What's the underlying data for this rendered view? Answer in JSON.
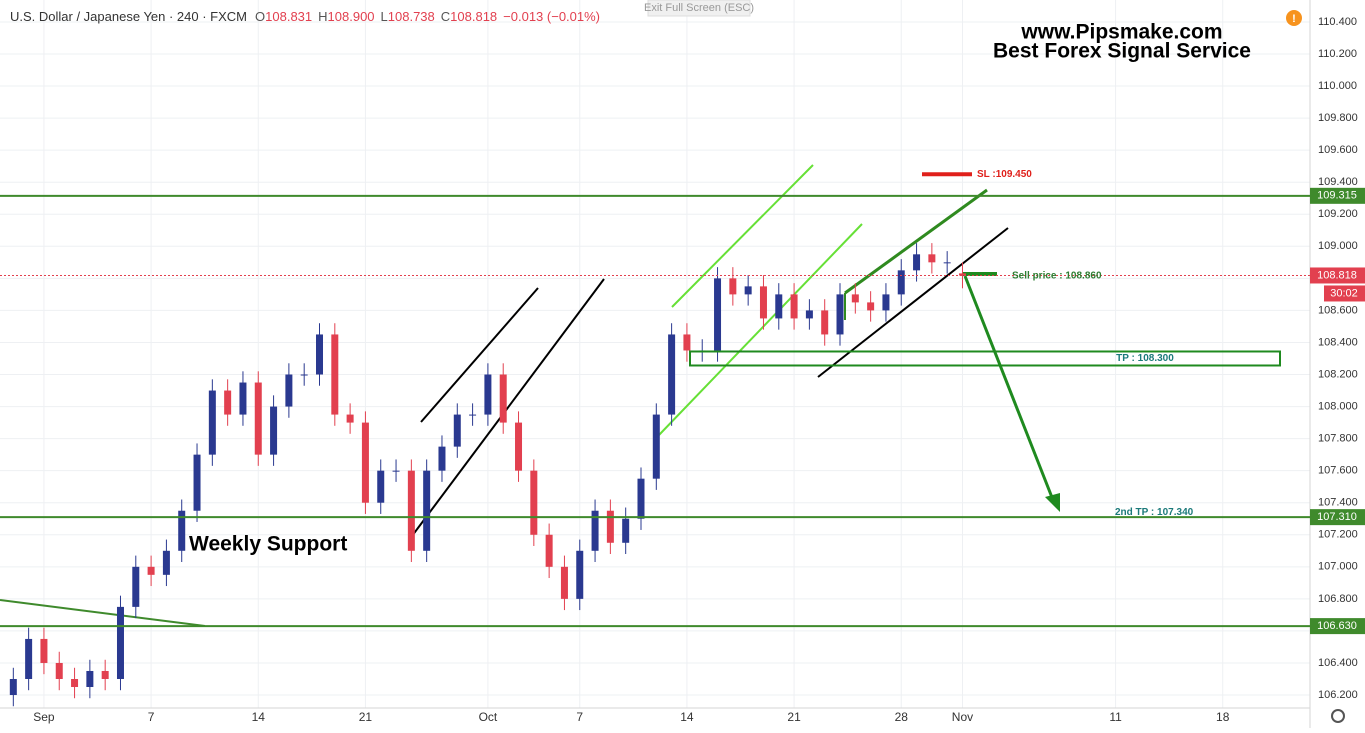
{
  "chart_data": {
    "type": "candlestick",
    "title": "U.S. Dollar / Japanese Yen · 240 · FXCM",
    "ohlc_legend": {
      "open_label": "O",
      "open": "108.831",
      "high_label": "H",
      "high": "108.900",
      "low_label": "L",
      "low": "108.738",
      "close_label": "C",
      "close": "108.818",
      "change": "−0.013 (−0.01%)"
    },
    "exit_button": "Exit Full Screen (ESC)",
    "watermark": [
      "www.Pipsmake.com",
      "Best Forex Signal Service"
    ],
    "support_label": "Weekly Support",
    "x": [
      -2,
      -1,
      0,
      1,
      2,
      3,
      4,
      5,
      6,
      7,
      8,
      9,
      10,
      11,
      12,
      13,
      14,
      15,
      16,
      17,
      18,
      19,
      20,
      21,
      22,
      23,
      24,
      25,
      26,
      27,
      28,
      29,
      30,
      31,
      32,
      33,
      34,
      35,
      36,
      37,
      38,
      39,
      40,
      41,
      42,
      43,
      44,
      45,
      46,
      47,
      48,
      49,
      50,
      51,
      52,
      53,
      54,
      55,
      56,
      57,
      58,
      59,
      60
    ],
    "open": [
      106.2,
      106.3,
      106.55,
      106.4,
      106.3,
      106.25,
      106.35,
      106.3,
      106.75,
      107.0,
      106.95,
      107.1,
      107.35,
      107.7,
      108.1,
      107.95,
      108.15,
      107.7,
      108.0,
      108.2,
      108.2,
      108.45,
      107.95,
      107.9,
      107.4,
      107.6,
      107.6,
      107.1,
      107.6,
      107.75,
      107.95,
      107.95,
      108.2,
      107.9,
      107.6,
      107.2,
      107.0,
      106.8,
      107.1,
      107.35,
      107.15,
      107.3,
      107.55,
      107.95,
      108.45,
      108.35,
      108.35,
      108.8,
      108.7,
      108.75,
      108.55,
      108.7,
      108.55,
      108.6,
      108.45,
      108.7,
      108.65,
      108.6,
      108.7,
      108.85,
      108.95,
      108.9,
      108.831
    ],
    "high": [
      106.37,
      106.62,
      106.62,
      106.47,
      106.37,
      106.42,
      106.42,
      106.82,
      107.07,
      107.07,
      107.17,
      107.42,
      107.77,
      108.17,
      108.17,
      108.22,
      108.22,
      108.07,
      108.27,
      108.27,
      108.52,
      108.52,
      108.02,
      107.97,
      107.67,
      107.67,
      107.67,
      107.67,
      107.82,
      108.02,
      108.02,
      108.27,
      108.27,
      107.97,
      107.67,
      107.27,
      107.07,
      107.17,
      107.42,
      107.42,
      107.37,
      107.62,
      108.02,
      108.52,
      108.52,
      108.42,
      108.87,
      108.87,
      108.82,
      108.82,
      108.77,
      108.77,
      108.67,
      108.67,
      108.77,
      108.77,
      108.72,
      108.77,
      108.92,
      109.02,
      109.02,
      108.97,
      108.9
    ],
    "low": [
      106.13,
      106.23,
      106.33,
      106.23,
      106.18,
      106.18,
      106.23,
      106.23,
      106.68,
      106.88,
      106.88,
      107.03,
      107.28,
      107.63,
      107.88,
      107.88,
      107.63,
      107.63,
      107.93,
      108.13,
      108.13,
      107.88,
      107.83,
      107.33,
      107.33,
      107.53,
      107.03,
      107.03,
      107.53,
      107.68,
      107.88,
      107.88,
      107.83,
      107.53,
      107.13,
      106.93,
      106.73,
      106.73,
      107.03,
      107.08,
      107.08,
      107.23,
      107.48,
      107.88,
      108.28,
      108.28,
      108.28,
      108.63,
      108.63,
      108.48,
      108.48,
      108.48,
      108.48,
      108.38,
      108.38,
      108.58,
      108.53,
      108.53,
      108.63,
      108.78,
      108.83,
      108.83,
      108.738
    ],
    "close": [
      106.3,
      106.55,
      106.4,
      106.3,
      106.25,
      106.35,
      106.3,
      106.75,
      107.0,
      106.95,
      107.1,
      107.35,
      107.7,
      108.1,
      107.95,
      108.15,
      107.7,
      108.0,
      108.2,
      108.2,
      108.45,
      107.95,
      107.9,
      107.4,
      107.6,
      107.6,
      107.1,
      107.6,
      107.75,
      107.95,
      107.95,
      108.2,
      107.9,
      107.6,
      107.2,
      107.0,
      106.8,
      107.1,
      107.35,
      107.15,
      107.3,
      107.55,
      107.95,
      108.45,
      108.35,
      108.35,
      108.8,
      108.7,
      108.75,
      108.55,
      108.7,
      108.55,
      108.6,
      108.45,
      108.7,
      108.65,
      108.6,
      108.7,
      108.85,
      108.95,
      108.9,
      108.9,
      108.818
    ],
    "up_color": "#2a3990",
    "down_color": "#e2404f",
    "xlim": [
      -2.87,
      82.7
    ],
    "xticks": [
      {
        "value": 0,
        "label": "Sep"
      },
      7,
      14,
      21,
      {
        "value": 29,
        "label": "Oct"
      },
      {
        "value": 35,
        "label": "7"
      },
      {
        "value": 42,
        "label": "14"
      },
      {
        "value": 49,
        "label": "21"
      },
      {
        "value": 56,
        "label": "28"
      },
      {
        "value": 60,
        "label": "Nov"
      },
      {
        "value": 70,
        "label": "11"
      },
      {
        "value": 77,
        "label": "18"
      }
    ],
    "ylim": [
      106.119,
      110.537
    ],
    "yticks": [
      {
        "value": 106.2,
        "label": "106.200"
      },
      {
        "value": 106.4,
        "label": "106.400"
      },
      {
        "value": 106.6,
        "label": "106.600"
      },
      {
        "value": 106.8,
        "label": "106.800"
      },
      {
        "value": 107.0,
        "label": "107.000"
      },
      {
        "value": 107.2,
        "label": "107.200"
      },
      {
        "value": 107.4,
        "label": "107.400"
      },
      {
        "value": 107.6,
        "label": "107.600"
      },
      {
        "value": 107.8,
        "label": "107.800"
      },
      {
        "value": 108.0,
        "label": "108.000"
      },
      {
        "value": 108.2,
        "label": "108.200"
      },
      {
        "value": 108.4,
        "label": "108.400"
      },
      {
        "value": 108.6,
        "label": "108.600"
      },
      {
        "value": 108.8,
        "label": "108.800"
      },
      {
        "value": 109.0,
        "label": "109.000"
      },
      {
        "value": 109.2,
        "label": "109.200"
      },
      {
        "value": 109.4,
        "label": "109.400"
      },
      {
        "value": 109.6,
        "label": "109.600"
      },
      {
        "value": 109.8,
        "label": "109.800"
      },
      {
        "value": 110.0,
        "label": "110.000"
      },
      {
        "value": 110.2,
        "label": "110.200"
      },
      {
        "value": 110.4,
        "label": "110.400"
      }
    ],
    "grid": true,
    "levels": [
      {
        "value": 109.315,
        "label": "109.315",
        "color": "#3f8a2c"
      },
      {
        "value": 107.31,
        "label": "107.310",
        "color": "#3f8a2c"
      },
      {
        "value": 106.63,
        "label": "106.630",
        "color": "#3f8a2c"
      },
      {
        "value": 108.818,
        "label": "108.818",
        "color": "#e2404f"
      }
    ],
    "countdown": "30:02",
    "stop_loss": {
      "value": 109.45,
      "label": "SL :109.450"
    },
    "sell": {
      "value": 108.86,
      "label": "Sell price : 108.860"
    },
    "take_profit": {
      "value": 108.3,
      "label": "TP : 108.300"
    },
    "take_profit_2": {
      "value": 107.34,
      "label": "2nd TP : 107.340"
    }
  }
}
